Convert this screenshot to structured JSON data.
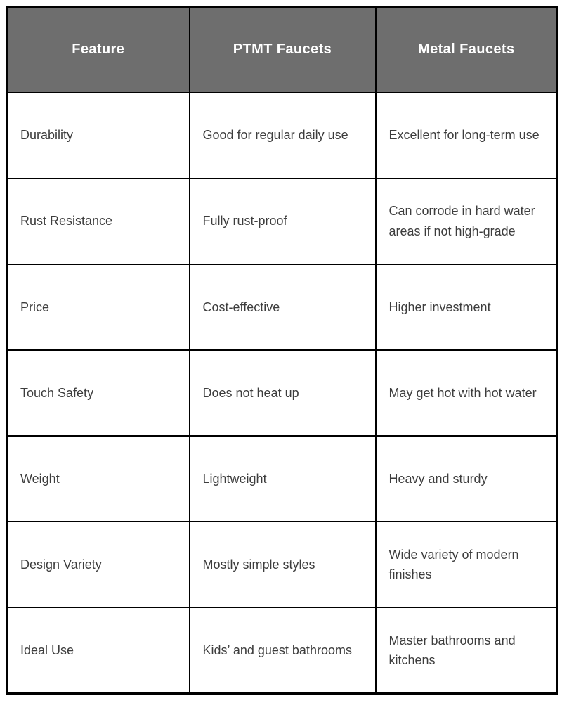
{
  "colors": {
    "header_background": "#6e6e6e",
    "header_text": "#ffffff",
    "border": "#000000",
    "body_text": "#3d3d3d",
    "page_background": "#ffffff"
  },
  "table": {
    "columns": [
      "Feature",
      "PTMT Faucets",
      "Metal Faucets"
    ],
    "rows": [
      {
        "feature": "Durability",
        "ptmt": "Good for regular daily use",
        "metal": "Excellent for long-term use"
      },
      {
        "feature": "Rust Resistance",
        "ptmt": "Fully rust-proof",
        "metal": "Can corrode in hard water areas if not high-grade"
      },
      {
        "feature": "Price",
        "ptmt": "Cost-effective",
        "metal": "Higher investment"
      },
      {
        "feature": "Touch Safety",
        "ptmt": "Does not heat up",
        "metal": "May get hot with hot water"
      },
      {
        "feature": "Weight",
        "ptmt": "Lightweight",
        "metal": "Heavy and sturdy"
      },
      {
        "feature": "Design Variety",
        "ptmt": "Mostly simple styles",
        "metal": "Wide variety of modern finishes"
      },
      {
        "feature": "Ideal Use",
        "ptmt": "Kids’ and guest bathrooms",
        "metal": "Master bathrooms and kitchens"
      }
    ]
  }
}
